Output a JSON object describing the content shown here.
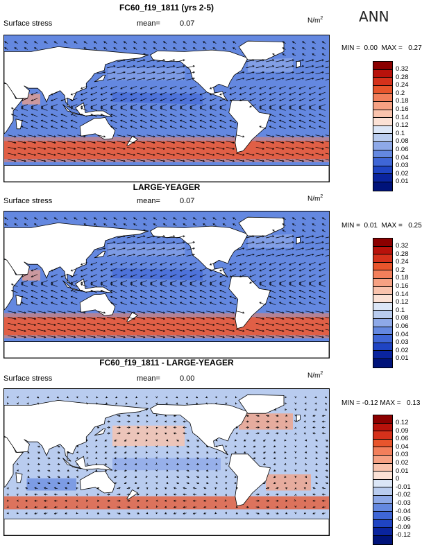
{
  "season": "ANN",
  "panels": [
    {
      "title": "FC60_f19_1811 (yrs 2-5)",
      "variable": "Surface stress",
      "mean_label": "mean=",
      "mean_value": "0.07",
      "units": "N/m",
      "units_exp": "2",
      "min_label": "MIN =",
      "min_value": "0.00",
      "max_label": "MAX =",
      "max_value": "0.27",
      "colorbar": {
        "labels": [
          "0.32",
          "0.28",
          "0.24",
          "0.2",
          "0.18",
          "0.16",
          "0.14",
          "0.12",
          "0.1",
          "0.08",
          "0.06",
          "0.04",
          "0.03",
          "0.02",
          "0.01"
        ],
        "colors": [
          "#8b0000",
          "#b8120b",
          "#d5311b",
          "#e8552c",
          "#f27f5b",
          "#f6a183",
          "#f9c3ad",
          "#fbe1d5",
          "#dbe6f7",
          "#b9ccef",
          "#8ea9e8",
          "#6488e0",
          "#3f66d6",
          "#1f44c3",
          "#0a249e",
          "#00137a"
        ]
      },
      "field": "full"
    },
    {
      "title": "LARGE-YEAGER",
      "variable": "Surface stress",
      "mean_label": "mean=",
      "mean_value": "0.07",
      "units": "N/m",
      "units_exp": "2",
      "min_label": "MIN =",
      "min_value": "0.01",
      "max_label": "MAX =",
      "max_value": "0.25",
      "colorbar": {
        "labels": [
          "0.32",
          "0.28",
          "0.24",
          "0.2",
          "0.18",
          "0.16",
          "0.14",
          "0.12",
          "0.1",
          "0.08",
          "0.06",
          "0.04",
          "0.03",
          "0.02",
          "0.01"
        ],
        "colors": [
          "#8b0000",
          "#b8120b",
          "#d5311b",
          "#e8552c",
          "#f27f5b",
          "#f6a183",
          "#f9c3ad",
          "#fbe1d5",
          "#dbe6f7",
          "#b9ccef",
          "#8ea9e8",
          "#6488e0",
          "#3f66d6",
          "#1f44c3",
          "#0a249e",
          "#00137a"
        ]
      },
      "field": "full"
    },
    {
      "title": "FC60_f19_1811 - LARGE-YEAGER",
      "variable": "Surface stress",
      "mean_label": "mean=",
      "mean_value": "0.00",
      "units": "N/m",
      "units_exp": "2",
      "min_label": "MIN =",
      "min_value": "-0.12",
      "max_label": "MAX =",
      "max_value": "0.13",
      "colorbar": {
        "labels": [
          "0.12",
          "0.09",
          "0.06",
          "0.04",
          "0.03",
          "0.02",
          "0.01",
          "0",
          "-0.01",
          "-0.02",
          "-0.03",
          "-0.04",
          "-0.06",
          "-0.09",
          "-0.12"
        ],
        "colors": [
          "#8b0000",
          "#b8120b",
          "#d5311b",
          "#e8552c",
          "#f27f5b",
          "#f6a183",
          "#f9c3ad",
          "#fbe1d5",
          "#dbe6f7",
          "#b9ccef",
          "#8ea9e8",
          "#6488e0",
          "#3f66d6",
          "#1f44c3",
          "#0a249e",
          "#00137a"
        ]
      },
      "field": "diff"
    }
  ]
}
